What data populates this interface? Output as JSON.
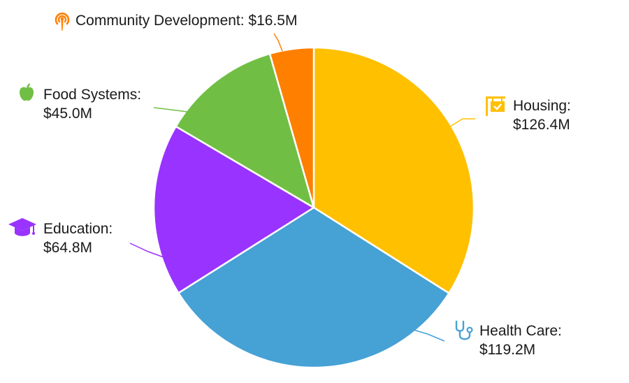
{
  "chart_data": {
    "type": "pie",
    "title": "",
    "unit": "$M",
    "slices": [
      {
        "name": "Housing",
        "value": 126.4,
        "display": "$126.4M",
        "color": "#FFC000",
        "icon": "house-sign-icon"
      },
      {
        "name": "Health Care",
        "value": 119.2,
        "display": "$119.2M",
        "color": "#46A1D5",
        "icon": "stethoscope-icon"
      },
      {
        "name": "Education",
        "value": 64.8,
        "display": "$64.8M",
        "color": "#9933FF",
        "icon": "graduation-cap-icon"
      },
      {
        "name": "Food Systems",
        "value": 45.0,
        "display": "$45.0M",
        "color": "#70BF44",
        "icon": "apple-icon"
      },
      {
        "name": "Community Development",
        "value": 16.5,
        "display": "$16.5M",
        "color": "#FF7F00",
        "icon": "broadcast-icon"
      }
    ]
  },
  "labels": {
    "housing": {
      "line1": "Housing:",
      "line2": "$126.4M"
    },
    "health_care": {
      "line1": "Health Care:",
      "line2": "$119.2M"
    },
    "education": {
      "line1": "Education:",
      "line2": "$64.8M"
    },
    "food_systems": {
      "line1": "Food Systems:",
      "line2": "$45.0M"
    },
    "community_development": {
      "line1": "Community Development: $16.5M"
    }
  }
}
